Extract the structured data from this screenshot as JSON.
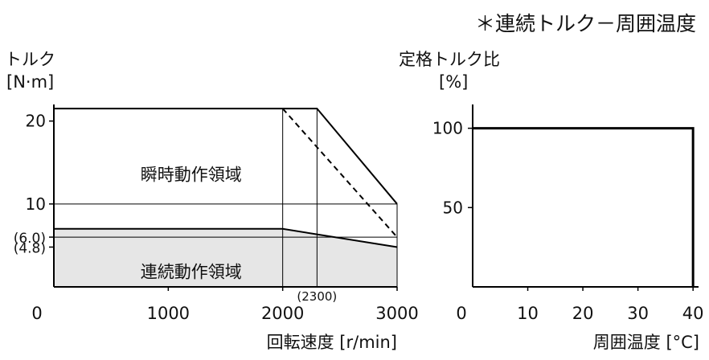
{
  "header_note": "＊連続トルク－周囲温度",
  "colors": {
    "line": "#000000",
    "continuous_fill": "#e6e6e6",
    "grid": "#000000"
  },
  "chart_data": [
    {
      "type": "area",
      "ylabel_line1": "トルク",
      "ylabel_line2": "[N·m]",
      "xlabel": "回転速度 [r/min]",
      "x_origin_label": "0",
      "xlim": [
        0,
        3000
      ],
      "ylim": [
        0,
        22
      ],
      "x_ticks": [
        {
          "value": 1000,
          "label": "1000"
        },
        {
          "value": 2000,
          "label": "2000"
        },
        {
          "value": 3000,
          "label": "3000"
        }
      ],
      "y_ticks": [
        {
          "value": 20,
          "label": "20"
        },
        {
          "value": 10,
          "label": "10"
        },
        {
          "value": 6.0,
          "label": "(6.0)"
        },
        {
          "value": 4.8,
          "label": "(4.8)"
        }
      ],
      "x_annotation": {
        "value": 2300,
        "label": "(2300)"
      },
      "regions": [
        {
          "name": "瞬時動作領域",
          "label": "瞬時動作領域",
          "label_at": [
            1200,
            13.5
          ],
          "x": [
            0,
            2300,
            3000
          ],
          "y": [
            21.5,
            21.5,
            10
          ]
        },
        {
          "name": "連続動作領域",
          "label": "連続動作領域",
          "label_at": [
            1200,
            1.8
          ],
          "x": [
            0,
            2000,
            3000
          ],
          "y": [
            7,
            7,
            4.8
          ]
        }
      ],
      "dashed_line": {
        "x": [
          2000,
          3000
        ],
        "y": [
          21.5,
          6.0
        ]
      },
      "reference_hlines": [
        {
          "y": 10,
          "x_from": 0,
          "x_to": 3000
        },
        {
          "y": 6.0,
          "x_from": 0,
          "x_to": 3000
        }
      ],
      "reference_vlines": [
        {
          "x": 2000,
          "y_from": 0,
          "y_to": 21.5
        },
        {
          "x": 2300,
          "y_from": 0,
          "y_to": 21.5
        },
        {
          "x": 3000,
          "y_from": 0,
          "y_to": 10
        }
      ]
    },
    {
      "type": "line",
      "ylabel_line1": "定格トルク比",
      "ylabel_line2": "[%]",
      "xlabel": "周囲温度 [°C]",
      "xlim": [
        0,
        41
      ],
      "ylim": [
        0,
        115
      ],
      "x_ticks": [
        {
          "value": 0,
          "label": "0"
        },
        {
          "value": 10,
          "label": "10"
        },
        {
          "value": 20,
          "label": "20"
        },
        {
          "value": 30,
          "label": "30"
        },
        {
          "value": 40,
          "label": "40"
        }
      ],
      "y_ticks": [
        {
          "value": 100,
          "label": "100"
        },
        {
          "value": 50,
          "label": "50"
        }
      ],
      "series": [
        {
          "x": [
            0,
            40,
            40
          ],
          "y": [
            100,
            100,
            0
          ]
        }
      ]
    }
  ]
}
